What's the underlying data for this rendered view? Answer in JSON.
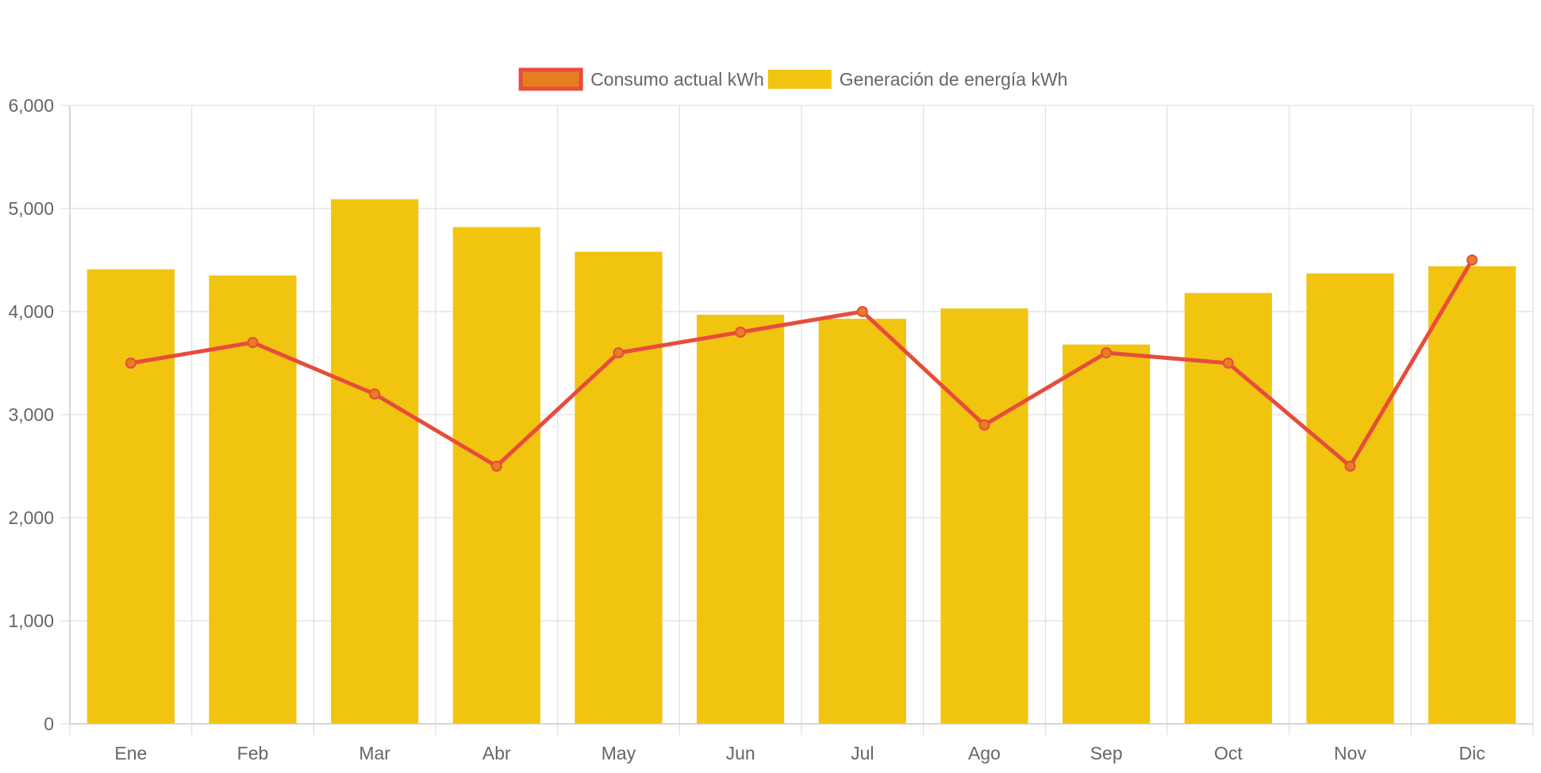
{
  "chart_data": {
    "type": "bar",
    "categories": [
      "Ene",
      "Feb",
      "Mar",
      "Abr",
      "May",
      "Jun",
      "Jul",
      "Ago",
      "Sep",
      "Oct",
      "Nov",
      "Dic"
    ],
    "series": [
      {
        "name": "Consumo actual kWh",
        "type": "line",
        "values": [
          3500,
          3700,
          3200,
          2500,
          3600,
          3800,
          4000,
          2900,
          3600,
          3500,
          2500,
          4500
        ],
        "color": "#e74c3c",
        "marker_fill": "#e67e22"
      },
      {
        "name": "Generación de energía kWh",
        "type": "bar",
        "values": [
          4410,
          4350,
          5090,
          4820,
          4580,
          3970,
          3930,
          4030,
          3680,
          4180,
          4370,
          4440
        ],
        "color": "#f1c40f"
      }
    ],
    "ylim": [
      0,
      6000
    ],
    "yticks": [
      0,
      1000,
      2000,
      3000,
      4000,
      5000,
      6000
    ],
    "ytick_labels": [
      "0",
      "1,000",
      "2,000",
      "3,000",
      "4,000",
      "5,000",
      "6,000"
    ],
    "grid": true,
    "legend_position": "top-center"
  }
}
